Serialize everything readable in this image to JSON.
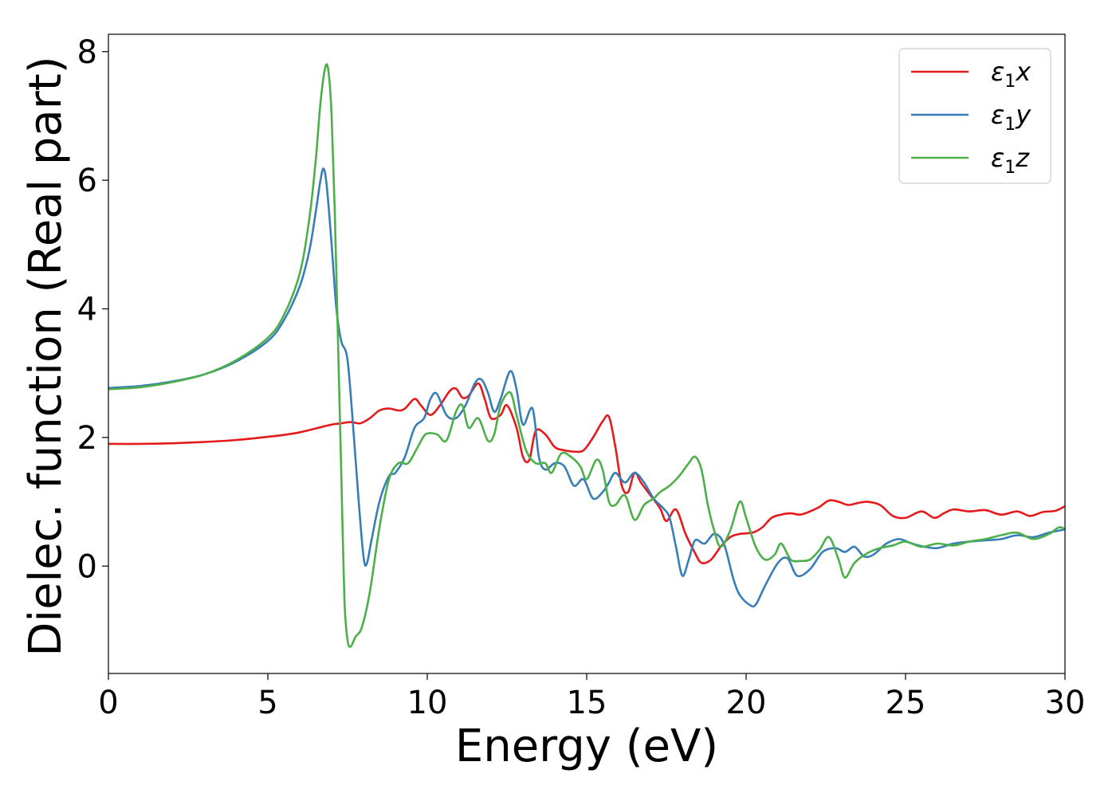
{
  "chart_data": {
    "type": "line",
    "xlabel": "Energy (eV)",
    "ylabel": "Dielec. function (Real part)",
    "xlim": [
      0,
      30
    ],
    "ylim": [
      -1.67,
      8.27
    ],
    "xticks": [
      0,
      5,
      10,
      15,
      20,
      25,
      30
    ],
    "yticks": [
      0,
      2,
      4,
      6,
      8
    ],
    "xtick_labels": [
      "0",
      "5",
      "10",
      "15",
      "20",
      "25",
      "30"
    ],
    "ytick_labels": [
      "0",
      "2",
      "4",
      "6",
      "8"
    ],
    "grid": false,
    "legend": "top-right",
    "series": [
      {
        "name": "ε1x",
        "label_base": "ε",
        "label_sub": "1",
        "label_var": "x",
        "color": "#e41a1c",
        "points": [
          [
            0,
            1.9
          ],
          [
            1,
            1.9
          ],
          [
            2,
            1.91
          ],
          [
            3,
            1.93
          ],
          [
            4,
            1.96
          ],
          [
            5,
            2.01
          ],
          [
            5.5,
            2.04
          ],
          [
            6,
            2.08
          ],
          [
            6.5,
            2.14
          ],
          [
            7,
            2.2
          ],
          [
            7.3,
            2.22
          ],
          [
            7.6,
            2.24
          ],
          [
            7.9,
            2.22
          ],
          [
            8.2,
            2.3
          ],
          [
            8.5,
            2.42
          ],
          [
            8.8,
            2.45
          ],
          [
            9.1,
            2.42
          ],
          [
            9.3,
            2.45
          ],
          [
            9.6,
            2.6
          ],
          [
            9.8,
            2.5
          ],
          [
            10.1,
            2.35
          ],
          [
            10.4,
            2.5
          ],
          [
            10.7,
            2.72
          ],
          [
            10.9,
            2.76
          ],
          [
            11.1,
            2.62
          ],
          [
            11.3,
            2.65
          ],
          [
            11.6,
            2.84
          ],
          [
            11.8,
            2.6
          ],
          [
            12,
            2.3
          ],
          [
            12.3,
            2.35
          ],
          [
            12.5,
            2.5
          ],
          [
            12.8,
            2.15
          ],
          [
            13,
            1.7
          ],
          [
            13.2,
            1.65
          ],
          [
            13.4,
            2.1
          ],
          [
            13.7,
            2.05
          ],
          [
            14,
            1.85
          ],
          [
            14.3,
            1.8
          ],
          [
            14.6,
            1.78
          ],
          [
            14.9,
            1.8
          ],
          [
            15.2,
            2.0
          ],
          [
            15.5,
            2.25
          ],
          [
            15.7,
            2.32
          ],
          [
            15.9,
            1.85
          ],
          [
            16.1,
            1.25
          ],
          [
            16.3,
            1.15
          ],
          [
            16.5,
            1.45
          ],
          [
            16.7,
            1.3
          ],
          [
            17,
            1.1
          ],
          [
            17.3,
            0.9
          ],
          [
            17.5,
            0.7
          ],
          [
            17.8,
            0.88
          ],
          [
            18.1,
            0.5
          ],
          [
            18.4,
            0.2
          ],
          [
            18.6,
            0.05
          ],
          [
            18.9,
            0.1
          ],
          [
            19.2,
            0.3
          ],
          [
            19.5,
            0.45
          ],
          [
            19.8,
            0.5
          ],
          [
            20.2,
            0.52
          ],
          [
            20.5,
            0.6
          ],
          [
            20.8,
            0.75
          ],
          [
            21.1,
            0.8
          ],
          [
            21.4,
            0.82
          ],
          [
            21.7,
            0.8
          ],
          [
            22.0,
            0.85
          ],
          [
            22.3,
            0.92
          ],
          [
            22.6,
            1.02
          ],
          [
            22.9,
            1.0
          ],
          [
            23.2,
            0.95
          ],
          [
            23.5,
            0.98
          ],
          [
            23.8,
            1.0
          ],
          [
            24.2,
            0.95
          ],
          [
            24.6,
            0.78
          ],
          [
            25.0,
            0.75
          ],
          [
            25.5,
            0.85
          ],
          [
            25.9,
            0.75
          ],
          [
            26.2,
            0.82
          ],
          [
            26.5,
            0.88
          ],
          [
            27.0,
            0.85
          ],
          [
            27.5,
            0.87
          ],
          [
            28.0,
            0.8
          ],
          [
            28.5,
            0.85
          ],
          [
            28.9,
            0.78
          ],
          [
            29.3,
            0.84
          ],
          [
            29.7,
            0.86
          ],
          [
            30,
            0.93
          ]
        ]
      },
      {
        "name": "ε1y",
        "label_base": "ε",
        "label_sub": "1",
        "label_var": "y",
        "color": "#377eb8",
        "points": [
          [
            0,
            2.77
          ],
          [
            1,
            2.8
          ],
          [
            2,
            2.87
          ],
          [
            3,
            2.98
          ],
          [
            4,
            3.18
          ],
          [
            5,
            3.5
          ],
          [
            5.5,
            3.82
          ],
          [
            6,
            4.35
          ],
          [
            6.3,
            4.9
          ],
          [
            6.5,
            5.5
          ],
          [
            6.65,
            6.0
          ],
          [
            6.75,
            6.18
          ],
          [
            6.85,
            5.9
          ],
          [
            7.0,
            5.0
          ],
          [
            7.15,
            4.0
          ],
          [
            7.3,
            3.5
          ],
          [
            7.5,
            3.2
          ],
          [
            7.7,
            2.0
          ],
          [
            7.85,
            1.0
          ],
          [
            8.0,
            0.15
          ],
          [
            8.1,
            0.03
          ],
          [
            8.25,
            0.4
          ],
          [
            8.5,
            1.0
          ],
          [
            8.8,
            1.4
          ],
          [
            9.0,
            1.45
          ],
          [
            9.3,
            1.7
          ],
          [
            9.6,
            2.15
          ],
          [
            9.9,
            2.3
          ],
          [
            10.1,
            2.6
          ],
          [
            10.3,
            2.68
          ],
          [
            10.6,
            2.35
          ],
          [
            10.9,
            2.3
          ],
          [
            11.2,
            2.5
          ],
          [
            11.5,
            2.85
          ],
          [
            11.7,
            2.9
          ],
          [
            11.9,
            2.7
          ],
          [
            12.1,
            2.4
          ],
          [
            12.3,
            2.6
          ],
          [
            12.6,
            3.03
          ],
          [
            12.8,
            2.75
          ],
          [
            13.0,
            2.2
          ],
          [
            13.3,
            2.45
          ],
          [
            13.5,
            1.7
          ],
          [
            13.7,
            1.5
          ],
          [
            14.0,
            1.6
          ],
          [
            14.3,
            1.55
          ],
          [
            14.6,
            1.25
          ],
          [
            14.9,
            1.35
          ],
          [
            15.2,
            1.05
          ],
          [
            15.5,
            1.15
          ],
          [
            15.7,
            1.3
          ],
          [
            15.9,
            1.45
          ],
          [
            16.2,
            1.3
          ],
          [
            16.5,
            1.45
          ],
          [
            16.8,
            1.3
          ],
          [
            17.1,
            1.05
          ],
          [
            17.4,
            0.9
          ],
          [
            17.6,
            0.75
          ],
          [
            17.8,
            0.3
          ],
          [
            18.0,
            -0.15
          ],
          [
            18.2,
            0.1
          ],
          [
            18.4,
            0.4
          ],
          [
            18.7,
            0.35
          ],
          [
            19.0,
            0.5
          ],
          [
            19.3,
            0.35
          ],
          [
            19.6,
            -0.2
          ],
          [
            19.8,
            -0.45
          ],
          [
            20.1,
            -0.6
          ],
          [
            20.3,
            -0.6
          ],
          [
            20.6,
            -0.3
          ],
          [
            21.0,
            0.05
          ],
          [
            21.3,
            0.12
          ],
          [
            21.6,
            -0.15
          ],
          [
            22.0,
            -0.05
          ],
          [
            22.4,
            0.22
          ],
          [
            22.8,
            0.28
          ],
          [
            23.1,
            0.22
          ],
          [
            23.4,
            0.3
          ],
          [
            23.7,
            0.15
          ],
          [
            24.0,
            0.18
          ],
          [
            24.4,
            0.35
          ],
          [
            24.8,
            0.42
          ],
          [
            25.2,
            0.35
          ],
          [
            25.6,
            0.3
          ],
          [
            26.0,
            0.28
          ],
          [
            26.5,
            0.35
          ],
          [
            27.0,
            0.38
          ],
          [
            27.5,
            0.4
          ],
          [
            28.0,
            0.42
          ],
          [
            28.5,
            0.48
          ],
          [
            29.0,
            0.45
          ],
          [
            29.5,
            0.52
          ],
          [
            30,
            0.57
          ]
        ]
      },
      {
        "name": "ε1z",
        "label_base": "ε",
        "label_sub": "1",
        "label_var": "z",
        "color": "#4daf4a",
        "points": [
          [
            0,
            2.75
          ],
          [
            1,
            2.78
          ],
          [
            2,
            2.86
          ],
          [
            3,
            2.98
          ],
          [
            4,
            3.2
          ],
          [
            5,
            3.55
          ],
          [
            5.5,
            3.9
          ],
          [
            6,
            4.55
          ],
          [
            6.3,
            5.4
          ],
          [
            6.5,
            6.3
          ],
          [
            6.65,
            7.2
          ],
          [
            6.8,
            7.75
          ],
          [
            6.9,
            7.7
          ],
          [
            7.0,
            7.0
          ],
          [
            7.1,
            5.5
          ],
          [
            7.2,
            3.5
          ],
          [
            7.3,
            1.5
          ],
          [
            7.4,
            -0.5
          ],
          [
            7.5,
            -1.15
          ],
          [
            7.6,
            -1.25
          ],
          [
            7.75,
            -1.1
          ],
          [
            7.95,
            -0.95
          ],
          [
            8.2,
            -0.4
          ],
          [
            8.5,
            0.6
          ],
          [
            8.8,
            1.35
          ],
          [
            9.1,
            1.6
          ],
          [
            9.4,
            1.6
          ],
          [
            9.7,
            1.85
          ],
          [
            9.95,
            2.05
          ],
          [
            10.3,
            2.05
          ],
          [
            10.6,
            1.95
          ],
          [
            10.9,
            2.4
          ],
          [
            11.1,
            2.5
          ],
          [
            11.3,
            2.15
          ],
          [
            11.6,
            2.3
          ],
          [
            11.9,
            1.95
          ],
          [
            12.1,
            2.05
          ],
          [
            12.3,
            2.5
          ],
          [
            12.6,
            2.7
          ],
          [
            12.8,
            2.35
          ],
          [
            13.1,
            1.8
          ],
          [
            13.4,
            1.6
          ],
          [
            13.7,
            1.6
          ],
          [
            13.9,
            1.45
          ],
          [
            14.2,
            1.75
          ],
          [
            14.5,
            1.7
          ],
          [
            14.8,
            1.55
          ],
          [
            15.0,
            1.35
          ],
          [
            15.3,
            1.65
          ],
          [
            15.5,
            1.5
          ],
          [
            15.7,
            1.0
          ],
          [
            15.9,
            0.95
          ],
          [
            16.2,
            1.1
          ],
          [
            16.5,
            0.72
          ],
          [
            16.8,
            0.95
          ],
          [
            17.1,
            1.05
          ],
          [
            17.3,
            1.15
          ],
          [
            17.6,
            1.25
          ],
          [
            17.9,
            1.4
          ],
          [
            18.2,
            1.6
          ],
          [
            18.4,
            1.7
          ],
          [
            18.6,
            1.5
          ],
          [
            18.8,
            0.95
          ],
          [
            19.0,
            0.55
          ],
          [
            19.2,
            0.3
          ],
          [
            19.5,
            0.55
          ],
          [
            19.8,
            1.0
          ],
          [
            20.0,
            0.75
          ],
          [
            20.3,
            0.3
          ],
          [
            20.6,
            0.1
          ],
          [
            20.9,
            0.18
          ],
          [
            21.1,
            0.35
          ],
          [
            21.4,
            0.1
          ],
          [
            21.7,
            0.08
          ],
          [
            22.0,
            0.1
          ],
          [
            22.3,
            0.25
          ],
          [
            22.6,
            0.45
          ],
          [
            22.9,
            0.1
          ],
          [
            23.1,
            -0.18
          ],
          [
            23.4,
            0.05
          ],
          [
            23.8,
            0.2
          ],
          [
            24.2,
            0.28
          ],
          [
            24.6,
            0.32
          ],
          [
            25.0,
            0.38
          ],
          [
            25.5,
            0.3
          ],
          [
            26.0,
            0.35
          ],
          [
            26.5,
            0.32
          ],
          [
            27.0,
            0.38
          ],
          [
            27.5,
            0.42
          ],
          [
            28.0,
            0.48
          ],
          [
            28.5,
            0.52
          ],
          [
            29.0,
            0.42
          ],
          [
            29.5,
            0.5
          ],
          [
            29.8,
            0.6
          ],
          [
            30,
            0.58
          ]
        ]
      }
    ]
  }
}
